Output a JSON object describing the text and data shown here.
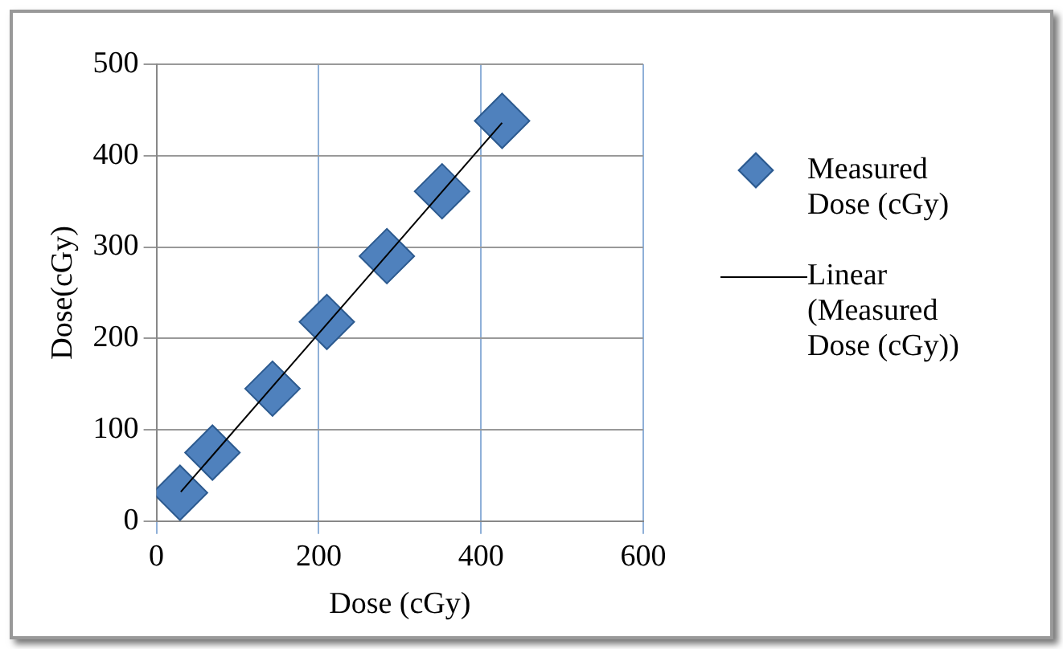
{
  "chart_data": {
    "type": "scatter",
    "xlabel": "Dose (cGy)",
    "ylabel": "Dose(cGy)",
    "xlim": [
      0,
      600
    ],
    "xticks": [
      0,
      200,
      400,
      600
    ],
    "ylim": [
      0,
      500
    ],
    "yticks": [
      0,
      100,
      200,
      300,
      400,
      500
    ],
    "grid": true,
    "legend": "right",
    "marker": "diamond",
    "series": [
      {
        "name": "Measured Dose (cGy)",
        "type": "scatter",
        "color": "#4f81bd",
        "x": [
          29,
          69,
          143,
          210,
          284,
          352,
          426
        ],
        "values": [
          31,
          75,
          145,
          218,
          290,
          361,
          438
        ]
      },
      {
        "name": "Linear (Measured Dose (cGy))",
        "type": "line",
        "color": "#000000",
        "marker": "none",
        "line_style": "solid",
        "x": [
          30,
          426
        ],
        "values": [
          32,
          436
        ]
      }
    ]
  }
}
